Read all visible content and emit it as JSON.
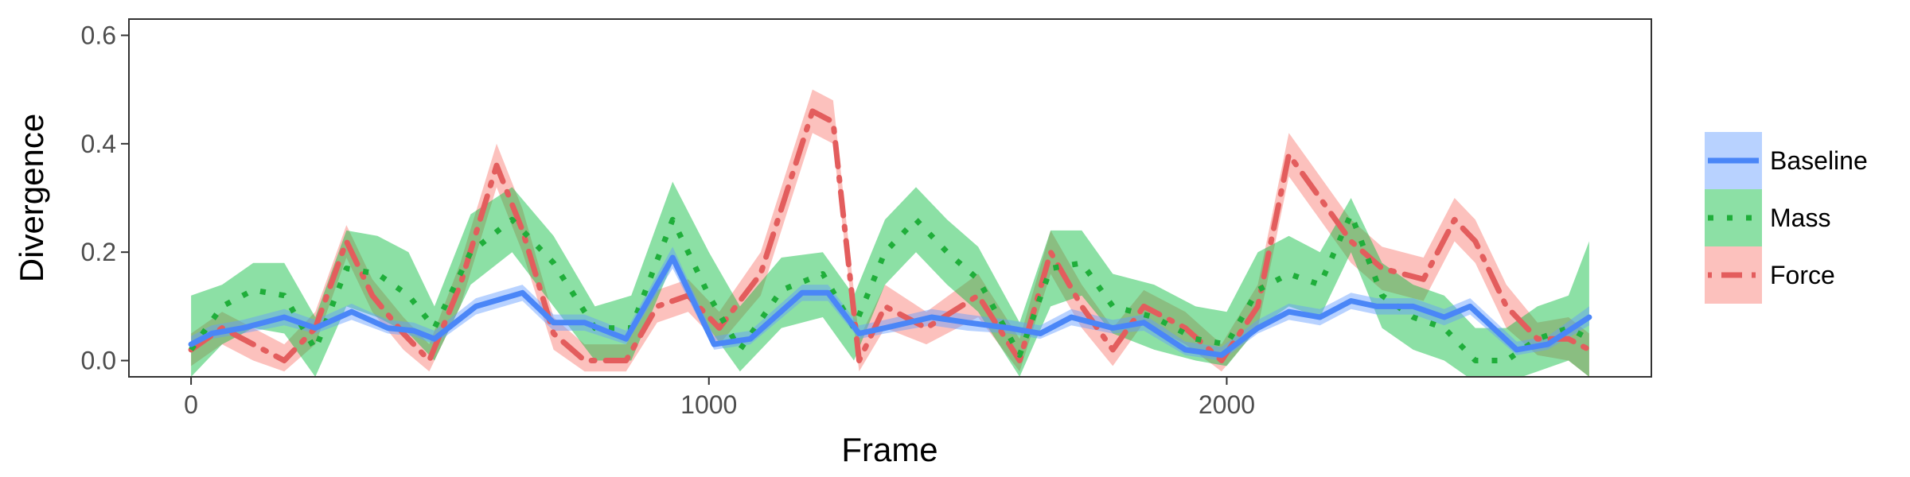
{
  "chart_data": {
    "type": "line",
    "xlabel": "Frame",
    "ylabel": "Divergence",
    "xlim": [
      -120,
      2820
    ],
    "ylim": [
      -0.03,
      0.63
    ],
    "xticks": [
      0,
      1000,
      2000
    ],
    "xtick_labels": [
      "0",
      "1000",
      "2000"
    ],
    "yticks": [
      0.0,
      0.2,
      0.4,
      0.6
    ],
    "ytick_labels": [
      "0.0",
      "0.2",
      "0.4",
      "0.6"
    ],
    "grid": false,
    "legend_position": "right",
    "series": [
      {
        "name": "Baseline",
        "color": "#619CFF",
        "line_color": "#4a86f7",
        "dash": "solid",
        "points": [
          [
            0,
            0.03,
            0.02,
            0.045
          ],
          [
            40,
            0.05,
            0.04,
            0.065
          ],
          [
            100,
            0.06,
            0.05,
            0.075
          ],
          [
            180,
            0.08,
            0.065,
            0.095
          ],
          [
            240,
            0.06,
            0.05,
            0.075
          ],
          [
            310,
            0.09,
            0.075,
            0.105
          ],
          [
            380,
            0.06,
            0.05,
            0.075
          ],
          [
            430,
            0.055,
            0.045,
            0.07
          ],
          [
            470,
            0.04,
            0.03,
            0.055
          ],
          [
            550,
            0.1,
            0.085,
            0.115
          ],
          [
            640,
            0.125,
            0.11,
            0.14
          ],
          [
            700,
            0.07,
            0.055,
            0.085
          ],
          [
            760,
            0.07,
            0.055,
            0.085
          ],
          [
            840,
            0.04,
            0.03,
            0.055
          ],
          [
            930,
            0.19,
            0.17,
            0.21
          ],
          [
            1010,
            0.03,
            0.02,
            0.045
          ],
          [
            1080,
            0.04,
            0.03,
            0.055
          ],
          [
            1180,
            0.125,
            0.11,
            0.14
          ],
          [
            1230,
            0.125,
            0.11,
            0.14
          ],
          [
            1290,
            0.05,
            0.04,
            0.065
          ],
          [
            1340,
            0.06,
            0.05,
            0.075
          ],
          [
            1430,
            0.08,
            0.065,
            0.095
          ],
          [
            1500,
            0.07,
            0.055,
            0.085
          ],
          [
            1580,
            0.06,
            0.05,
            0.075
          ],
          [
            1640,
            0.05,
            0.04,
            0.065
          ],
          [
            1700,
            0.08,
            0.065,
            0.095
          ],
          [
            1780,
            0.06,
            0.05,
            0.075
          ],
          [
            1840,
            0.07,
            0.055,
            0.085
          ],
          [
            1920,
            0.02,
            0.01,
            0.035
          ],
          [
            1990,
            0.01,
            0.0,
            0.025
          ],
          [
            2060,
            0.06,
            0.05,
            0.075
          ],
          [
            2120,
            0.09,
            0.075,
            0.105
          ],
          [
            2180,
            0.08,
            0.065,
            0.095
          ],
          [
            2240,
            0.11,
            0.095,
            0.125
          ],
          [
            2290,
            0.1,
            0.085,
            0.115
          ],
          [
            2360,
            0.1,
            0.085,
            0.115
          ],
          [
            2420,
            0.08,
            0.065,
            0.095
          ],
          [
            2470,
            0.1,
            0.085,
            0.115
          ],
          [
            2560,
            0.02,
            0.01,
            0.035
          ],
          [
            2620,
            0.03,
            0.02,
            0.045
          ],
          [
            2700,
            0.08,
            0.065,
            0.1
          ]
        ]
      },
      {
        "name": "Mass",
        "color": "#00BA38",
        "line_color": "#1fae3a",
        "dash": "dotted",
        "points": [
          [
            0,
            0.02,
            -0.03,
            0.12
          ],
          [
            60,
            0.1,
            0.03,
            0.14
          ],
          [
            120,
            0.13,
            0.06,
            0.18
          ],
          [
            180,
            0.12,
            0.05,
            0.18
          ],
          [
            240,
            0.02,
            -0.03,
            0.08
          ],
          [
            300,
            0.17,
            0.1,
            0.24
          ],
          [
            360,
            0.16,
            0.08,
            0.23
          ],
          [
            420,
            0.12,
            0.05,
            0.2
          ],
          [
            470,
            0.06,
            0.0,
            0.1
          ],
          [
            540,
            0.2,
            0.14,
            0.27
          ],
          [
            620,
            0.26,
            0.2,
            0.32
          ],
          [
            700,
            0.18,
            0.1,
            0.23
          ],
          [
            780,
            0.06,
            0.0,
            0.1
          ],
          [
            850,
            0.06,
            0.0,
            0.12
          ],
          [
            930,
            0.26,
            0.18,
            0.33
          ],
          [
            1000,
            0.12,
            0.06,
            0.2
          ],
          [
            1060,
            0.02,
            -0.02,
            0.1
          ],
          [
            1140,
            0.13,
            0.06,
            0.19
          ],
          [
            1220,
            0.16,
            0.08,
            0.2
          ],
          [
            1280,
            0.06,
            0.0,
            0.12
          ],
          [
            1340,
            0.2,
            0.14,
            0.26
          ],
          [
            1400,
            0.26,
            0.2,
            0.32
          ],
          [
            1460,
            0.2,
            0.14,
            0.26
          ],
          [
            1520,
            0.15,
            0.09,
            0.21
          ],
          [
            1600,
            0.01,
            -0.03,
            0.07
          ],
          [
            1660,
            0.17,
            0.1,
            0.24
          ],
          [
            1720,
            0.18,
            0.12,
            0.24
          ],
          [
            1780,
            0.1,
            0.05,
            0.16
          ],
          [
            1860,
            0.08,
            0.02,
            0.14
          ],
          [
            1940,
            0.04,
            0.0,
            0.1
          ],
          [
            2000,
            0.03,
            -0.01,
            0.09
          ],
          [
            2060,
            0.13,
            0.06,
            0.2
          ],
          [
            2120,
            0.16,
            0.1,
            0.23
          ],
          [
            2180,
            0.14,
            0.08,
            0.2
          ],
          [
            2240,
            0.27,
            0.2,
            0.3
          ],
          [
            2300,
            0.12,
            0.06,
            0.18
          ],
          [
            2360,
            0.08,
            0.02,
            0.14
          ],
          [
            2420,
            0.06,
            0.0,
            0.12
          ],
          [
            2480,
            0.0,
            -0.04,
            0.06
          ],
          [
            2540,
            0.0,
            -0.04,
            0.06
          ],
          [
            2600,
            0.04,
            -0.02,
            0.1
          ],
          [
            2660,
            0.06,
            0.0,
            0.12
          ],
          [
            2700,
            0.04,
            -0.03,
            0.22
          ]
        ]
      },
      {
        "name": "Force",
        "color": "#F8766D",
        "line_color": "#e35d5d",
        "dash": "dotdash",
        "points": [
          [
            0,
            0.02,
            -0.01,
            0.05
          ],
          [
            60,
            0.06,
            0.03,
            0.09
          ],
          [
            120,
            0.03,
            0.0,
            0.06
          ],
          [
            180,
            0.0,
            -0.02,
            0.03
          ],
          [
            240,
            0.06,
            0.03,
            0.09
          ],
          [
            300,
            0.22,
            0.19,
            0.25
          ],
          [
            350,
            0.12,
            0.09,
            0.15
          ],
          [
            410,
            0.05,
            0.02,
            0.08
          ],
          [
            460,
            0.0,
            -0.02,
            0.03
          ],
          [
            520,
            0.14,
            0.1,
            0.18
          ],
          [
            590,
            0.36,
            0.32,
            0.4
          ],
          [
            640,
            0.24,
            0.2,
            0.28
          ],
          [
            700,
            0.05,
            0.02,
            0.08
          ],
          [
            760,
            0.0,
            -0.02,
            0.03
          ],
          [
            840,
            0.0,
            -0.02,
            0.03
          ],
          [
            900,
            0.1,
            0.07,
            0.13
          ],
          [
            960,
            0.12,
            0.09,
            0.15
          ],
          [
            1020,
            0.06,
            0.03,
            0.09
          ],
          [
            1100,
            0.16,
            0.12,
            0.2
          ],
          [
            1200,
            0.46,
            0.42,
            0.5
          ],
          [
            1240,
            0.44,
            0.4,
            0.48
          ],
          [
            1290,
            0.0,
            -0.02,
            0.04
          ],
          [
            1340,
            0.1,
            0.06,
            0.14
          ],
          [
            1420,
            0.06,
            0.03,
            0.09
          ],
          [
            1520,
            0.12,
            0.08,
            0.16
          ],
          [
            1600,
            0.0,
            -0.02,
            0.04
          ],
          [
            1660,
            0.2,
            0.16,
            0.24
          ],
          [
            1720,
            0.1,
            0.06,
            0.14
          ],
          [
            1780,
            0.02,
            -0.01,
            0.06
          ],
          [
            1840,
            0.1,
            0.07,
            0.13
          ],
          [
            1920,
            0.06,
            0.03,
            0.09
          ],
          [
            1990,
            0.0,
            -0.02,
            0.03
          ],
          [
            2060,
            0.1,
            0.06,
            0.14
          ],
          [
            2120,
            0.38,
            0.34,
            0.42
          ],
          [
            2180,
            0.3,
            0.26,
            0.34
          ],
          [
            2240,
            0.22,
            0.18,
            0.26
          ],
          [
            2300,
            0.17,
            0.13,
            0.21
          ],
          [
            2380,
            0.15,
            0.11,
            0.19
          ],
          [
            2440,
            0.26,
            0.22,
            0.3
          ],
          [
            2480,
            0.22,
            0.18,
            0.26
          ],
          [
            2540,
            0.1,
            0.06,
            0.14
          ],
          [
            2600,
            0.04,
            0.01,
            0.07
          ],
          [
            2660,
            0.04,
            0.0,
            0.08
          ],
          [
            2700,
            0.02,
            -0.03,
            0.05
          ]
        ]
      }
    ]
  }
}
